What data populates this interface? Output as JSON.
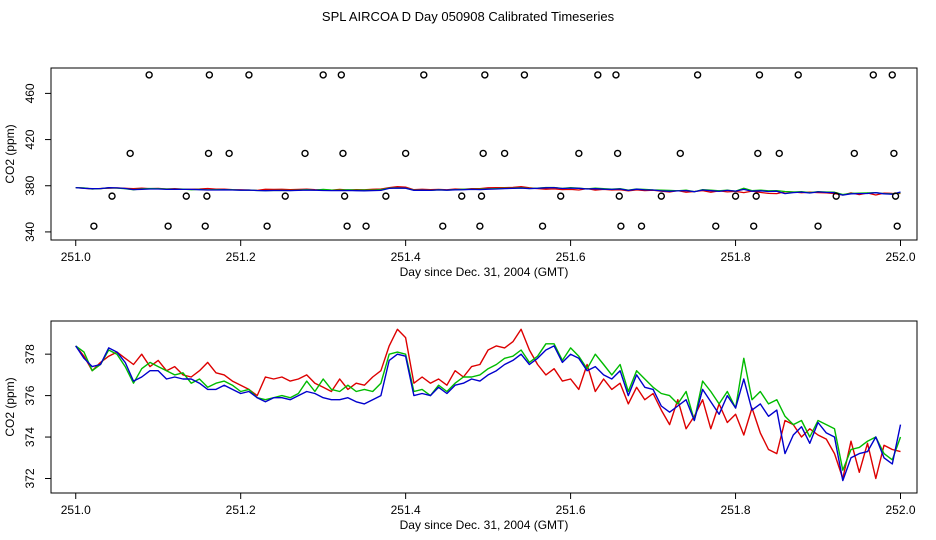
{
  "title": "SPL AIRCOA D  Day 050908  Calibrated Timeseries",
  "colors": {
    "red": "#dd0000",
    "green": "#00bb00",
    "blue": "#0000cc",
    "axis": "#000000"
  },
  "chart_data": [
    {
      "type": "line+scatter",
      "xlabel": "Day since Dec. 31, 2004 (GMT)",
      "ylabel": "CO2 (ppm)",
      "xlim": [
        250.97,
        252.02
      ],
      "ylim": [
        333,
        482
      ],
      "xticks": [
        251.0,
        251.2,
        251.4,
        251.6,
        251.8,
        252.0
      ],
      "xtick_labels": [
        "251.0",
        "251.2",
        "251.4",
        "251.6",
        "251.8",
        "252.0"
      ],
      "yticks": [
        340,
        380,
        420,
        460
      ],
      "ytick_labels": [
        "340",
        "380",
        "420",
        "460"
      ],
      "calibration_points": [
        {
          "x": 251.022,
          "y": 345
        },
        {
          "x": 251.044,
          "y": 371
        },
        {
          "x": 251.066,
          "y": 408
        },
        {
          "x": 251.089,
          "y": 476
        },
        {
          "x": 251.112,
          "y": 345
        },
        {
          "x": 251.134,
          "y": 371
        },
        {
          "x": 251.157,
          "y": 345
        },
        {
          "x": 251.159,
          "y": 371
        },
        {
          "x": 251.161,
          "y": 408
        },
        {
          "x": 251.162,
          "y": 476
        },
        {
          "x": 251.186,
          "y": 408
        },
        {
          "x": 251.21,
          "y": 476
        },
        {
          "x": 251.232,
          "y": 345
        },
        {
          "x": 251.254,
          "y": 371
        },
        {
          "x": 251.278,
          "y": 408
        },
        {
          "x": 251.3,
          "y": 476
        },
        {
          "x": 251.322,
          "y": 476
        },
        {
          "x": 251.324,
          "y": 408
        },
        {
          "x": 251.326,
          "y": 371
        },
        {
          "x": 251.329,
          "y": 345
        },
        {
          "x": 251.352,
          "y": 345
        },
        {
          "x": 251.376,
          "y": 371
        },
        {
          "x": 251.4,
          "y": 408
        },
        {
          "x": 251.422,
          "y": 476
        },
        {
          "x": 251.445,
          "y": 345
        },
        {
          "x": 251.468,
          "y": 371
        },
        {
          "x": 251.49,
          "y": 345
        },
        {
          "x": 251.492,
          "y": 371
        },
        {
          "x": 251.494,
          "y": 408
        },
        {
          "x": 251.496,
          "y": 476
        },
        {
          "x": 251.52,
          "y": 408
        },
        {
          "x": 251.544,
          "y": 476
        },
        {
          "x": 251.566,
          "y": 345
        },
        {
          "x": 251.588,
          "y": 371
        },
        {
          "x": 251.61,
          "y": 408
        },
        {
          "x": 251.633,
          "y": 476
        },
        {
          "x": 251.655,
          "y": 476
        },
        {
          "x": 251.657,
          "y": 408
        },
        {
          "x": 251.659,
          "y": 371
        },
        {
          "x": 251.661,
          "y": 345
        },
        {
          "x": 251.686,
          "y": 345
        },
        {
          "x": 251.71,
          "y": 371
        },
        {
          "x": 251.733,
          "y": 408
        },
        {
          "x": 251.754,
          "y": 476
        },
        {
          "x": 251.776,
          "y": 345
        },
        {
          "x": 251.8,
          "y": 371
        },
        {
          "x": 251.822,
          "y": 345
        },
        {
          "x": 251.825,
          "y": 371
        },
        {
          "x": 251.827,
          "y": 408
        },
        {
          "x": 251.829,
          "y": 476
        },
        {
          "x": 251.853,
          "y": 408
        },
        {
          "x": 251.876,
          "y": 476
        },
        {
          "x": 251.9,
          "y": 345
        },
        {
          "x": 251.922,
          "y": 371
        },
        {
          "x": 251.944,
          "y": 408
        },
        {
          "x": 251.967,
          "y": 476
        },
        {
          "x": 251.99,
          "y": 476
        },
        {
          "x": 251.992,
          "y": 408
        },
        {
          "x": 251.994,
          "y": 371
        },
        {
          "x": 251.996,
          "y": 345
        }
      ]
    },
    {
      "type": "line",
      "xlabel": "Day since Dec. 31, 2004 (GMT)",
      "ylabel": "CO2 (ppm)",
      "xlim": [
        250.97,
        252.02
      ],
      "ylim": [
        371.3,
        379.6
      ],
      "xticks": [
        251.0,
        251.2,
        251.4,
        251.6,
        251.8,
        252.0
      ],
      "xtick_labels": [
        "251.0",
        "251.2",
        "251.4",
        "251.6",
        "251.8",
        "252.0"
      ],
      "yticks": [
        372,
        374,
        376,
        378
      ],
      "ytick_labels": [
        "372",
        "374",
        "376",
        "378"
      ],
      "x": [
        251.0,
        251.01,
        251.02,
        251.03,
        251.04,
        251.05,
        251.06,
        251.07,
        251.08,
        251.09,
        251.1,
        251.11,
        251.12,
        251.13,
        251.14,
        251.15,
        251.16,
        251.17,
        251.18,
        251.19,
        251.2,
        251.21,
        251.22,
        251.23,
        251.24,
        251.25,
        251.26,
        251.27,
        251.28,
        251.29,
        251.3,
        251.31,
        251.32,
        251.33,
        251.34,
        251.35,
        251.36,
        251.37,
        251.38,
        251.39,
        251.4,
        251.41,
        251.42,
        251.43,
        251.44,
        251.45,
        251.46,
        251.47,
        251.48,
        251.49,
        251.5,
        251.51,
        251.52,
        251.53,
        251.54,
        251.55,
        251.56,
        251.57,
        251.58,
        251.59,
        251.6,
        251.61,
        251.62,
        251.63,
        251.64,
        251.65,
        251.66,
        251.67,
        251.68,
        251.69,
        251.7,
        251.71,
        251.72,
        251.73,
        251.74,
        251.75,
        251.76,
        251.77,
        251.78,
        251.79,
        251.8,
        251.81,
        251.82,
        251.83,
        251.84,
        251.85,
        251.86,
        251.87,
        251.88,
        251.89,
        251.9,
        251.91,
        251.92,
        251.93,
        251.94,
        251.95,
        251.96,
        251.97,
        251.98,
        251.99,
        252.0
      ],
      "series": [
        {
          "name": "red",
          "color": "#dd0000",
          "values": [
            378.4,
            377.9,
            377.2,
            377.6,
            377.9,
            378.1,
            377.8,
            377.5,
            378.0,
            377.4,
            377.7,
            377.2,
            377.4,
            377.0,
            376.9,
            377.2,
            377.6,
            377.1,
            377.0,
            376.7,
            376.5,
            376.3,
            376.0,
            376.9,
            376.8,
            376.9,
            376.7,
            376.8,
            377.0,
            376.6,
            376.4,
            376.2,
            376.8,
            376.3,
            376.6,
            376.5,
            376.9,
            377.2,
            378.4,
            379.2,
            378.8,
            376.6,
            376.9,
            376.6,
            376.8,
            376.5,
            377.2,
            376.9,
            377.4,
            377.5,
            378.2,
            378.4,
            378.3,
            378.6,
            379.2,
            378.2,
            377.5,
            377.0,
            377.3,
            376.7,
            376.8,
            376.3,
            377.5,
            376.2,
            376.8,
            376.3,
            376.6,
            375.6,
            376.4,
            375.8,
            376.1,
            375.3,
            374.6,
            375.8,
            374.4,
            375.0,
            375.8,
            374.4,
            375.6,
            374.7,
            375.1,
            374.1,
            375.4,
            374.2,
            373.4,
            373.2,
            374.8,
            374.6,
            374.0,
            374.4,
            374.1,
            373.9,
            373.2,
            372.0,
            373.8,
            372.3,
            373.7,
            372.0,
            373.6,
            373.4,
            373.3
          ]
        },
        {
          "name": "green",
          "color": "#00bb00",
          "values": [
            378.4,
            378.1,
            377.2,
            377.5,
            378.2,
            378.0,
            377.4,
            376.6,
            377.3,
            377.6,
            377.4,
            377.2,
            377.0,
            377.1,
            376.6,
            376.8,
            376.4,
            376.6,
            376.7,
            376.5,
            376.2,
            376.3,
            375.9,
            375.8,
            375.9,
            376.0,
            375.9,
            376.1,
            376.7,
            376.2,
            376.8,
            376.3,
            376.2,
            376.5,
            376.2,
            376.3,
            376.2,
            376.6,
            378.0,
            378.1,
            378.0,
            376.2,
            376.3,
            376.0,
            376.5,
            376.2,
            376.6,
            376.9,
            376.9,
            377.0,
            377.3,
            377.5,
            377.8,
            377.9,
            378.2,
            377.6,
            377.9,
            378.5,
            378.5,
            377.7,
            378.3,
            377.9,
            377.3,
            378.0,
            377.5,
            377.0,
            377.5,
            376.2,
            377.2,
            376.8,
            376.4,
            376.1,
            376.0,
            375.6,
            376.2,
            374.8,
            376.7,
            376.2,
            375.6,
            376.2,
            375.4,
            377.8,
            375.8,
            376.2,
            375.6,
            375.8,
            375.0,
            374.6,
            374.8,
            374.0,
            374.8,
            374.6,
            374.4,
            372.4,
            373.4,
            373.5,
            373.8,
            374.0,
            373.2,
            372.9,
            374.0
          ]
        },
        {
          "name": "blue",
          "color": "#0000cc",
          "values": [
            378.4,
            377.8,
            377.4,
            377.5,
            378.3,
            378.1,
            377.6,
            376.7,
            376.9,
            377.2,
            377.2,
            376.8,
            376.9,
            376.8,
            376.8,
            376.6,
            376.3,
            376.3,
            376.5,
            376.3,
            376.1,
            376.2,
            375.9,
            375.7,
            375.9,
            375.9,
            375.8,
            376.0,
            376.2,
            376.1,
            375.9,
            375.8,
            375.8,
            375.9,
            375.7,
            375.6,
            375.8,
            376.0,
            377.7,
            378.0,
            377.9,
            376.0,
            376.1,
            376.0,
            376.4,
            376.1,
            376.5,
            376.6,
            376.8,
            376.7,
            377.0,
            377.2,
            377.5,
            377.7,
            378.0,
            377.5,
            377.8,
            378.2,
            378.4,
            377.6,
            378.0,
            377.8,
            377.2,
            377.4,
            377.0,
            376.8,
            377.2,
            376.0,
            377.0,
            376.4,
            376.3,
            375.5,
            375.2,
            375.5,
            375.8,
            374.8,
            376.3,
            375.7,
            375.1,
            376.0,
            375.4,
            376.8,
            375.3,
            375.6,
            375.0,
            375.3,
            373.2,
            374.1,
            374.5,
            373.7,
            374.7,
            374.2,
            374.0,
            371.9,
            373.0,
            373.2,
            373.3,
            374.0,
            373.0,
            372.7,
            374.6
          ]
        }
      ]
    }
  ]
}
